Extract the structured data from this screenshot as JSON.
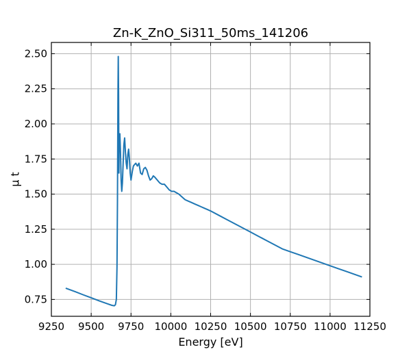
{
  "chart_data": {
    "type": "line",
    "title": "Zn-K_ZnO_Si311_50ms_141206",
    "xlabel": "Energy [eV]",
    "ylabel": "μ t",
    "xlim": [
      9250,
      11250
    ],
    "ylim": [
      0.63,
      2.58
    ],
    "xticks": [
      9250,
      9500,
      9750,
      10000,
      10250,
      10500,
      10750,
      11000,
      11250
    ],
    "xtick_labels": [
      "9250",
      "9500",
      "9750",
      "10000",
      "10250",
      "10500",
      "10750",
      "11000",
      "11250"
    ],
    "yticks": [
      0.75,
      1.0,
      1.25,
      1.5,
      1.75,
      2.0,
      2.25,
      2.5
    ],
    "ytick_labels": [
      "0.75",
      "1.00",
      "1.25",
      "1.50",
      "1.75",
      "2.00",
      "2.25",
      "2.50"
    ],
    "grid": true,
    "color": "#1f77b4",
    "series": [
      {
        "x": [
          9340,
          9400,
          9450,
          9500,
          9550,
          9600,
          9630,
          9645,
          9652,
          9658,
          9662,
          9665,
          9668,
          9670,
          9672,
          9674,
          9676,
          9680,
          9684,
          9688,
          9692,
          9696,
          9700,
          9705,
          9710,
          9715,
          9720,
          9725,
          9730,
          9735,
          9740,
          9745,
          9750,
          9758,
          9765,
          9772,
          9780,
          9790,
          9800,
          9810,
          9820,
          9830,
          9840,
          9850,
          9860,
          9870,
          9880,
          9890,
          9900,
          9915,
          9930,
          9945,
          9960,
          9975,
          9990,
          10005,
          10020,
          10035,
          10050,
          10070,
          10090,
          10110,
          10130,
          10150,
          10170,
          10190,
          10210,
          10230,
          10250,
          10300,
          10350,
          10400,
          10450,
          10500,
          10550,
          10600,
          10650,
          10700,
          10750,
          10800,
          10850,
          10900,
          10950,
          11000,
          11050,
          11100,
          11150,
          11200
        ],
        "y": [
          0.83,
          0.805,
          0.783,
          0.762,
          0.74,
          0.72,
          0.708,
          0.705,
          0.712,
          0.75,
          0.98,
          1.45,
          2.2,
          2.48,
          2.2,
          1.65,
          1.88,
          1.93,
          1.8,
          1.6,
          1.52,
          1.58,
          1.7,
          1.85,
          1.9,
          1.8,
          1.72,
          1.68,
          1.78,
          1.82,
          1.75,
          1.65,
          1.6,
          1.66,
          1.7,
          1.71,
          1.72,
          1.7,
          1.72,
          1.65,
          1.64,
          1.68,
          1.69,
          1.67,
          1.63,
          1.6,
          1.61,
          1.63,
          1.62,
          1.6,
          1.58,
          1.57,
          1.57,
          1.55,
          1.53,
          1.52,
          1.52,
          1.51,
          1.5,
          1.48,
          1.46,
          1.45,
          1.44,
          1.43,
          1.42,
          1.41,
          1.4,
          1.39,
          1.38,
          1.35,
          1.32,
          1.29,
          1.26,
          1.23,
          1.2,
          1.17,
          1.14,
          1.11,
          1.09,
          1.07,
          1.05,
          1.03,
          1.01,
          0.99,
          0.97,
          0.95,
          0.93,
          0.91
        ]
      }
    ]
  }
}
